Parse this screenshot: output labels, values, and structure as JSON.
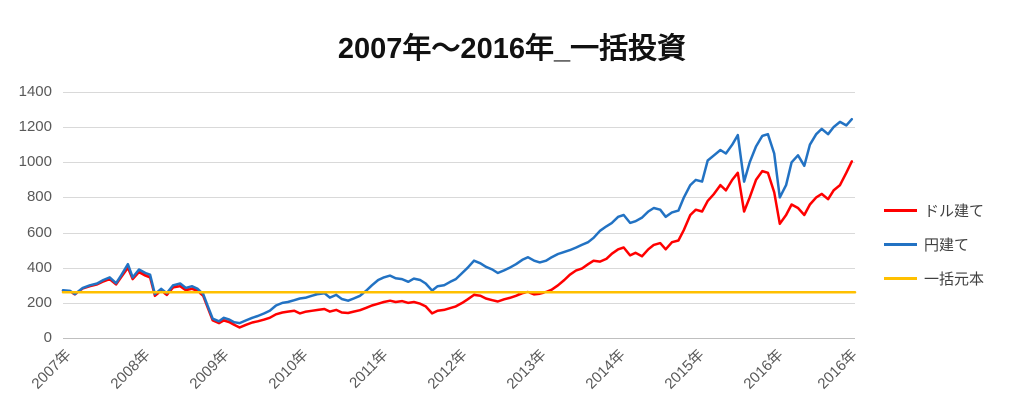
{
  "title": "2007年〜2016年_一括投資",
  "colors": {
    "usd_line": "#FF0000",
    "jpy_line": "#2272C3",
    "principal_line": "#FFC000",
    "grid": "#D9D9D9",
    "axis_text": "#595959",
    "legend_text": "#404040"
  },
  "legend": {
    "items": [
      {
        "key": "usd",
        "label": "ドル建て",
        "color": "#FF0000"
      },
      {
        "key": "jpy",
        "label": "円建て",
        "color": "#2272C3"
      },
      {
        "key": "principal",
        "label": "一括元本",
        "color": "#FFC000"
      }
    ]
  },
  "chart_data": {
    "type": "line",
    "title": "2007年〜2016年_一括投資",
    "xlabel": "",
    "ylabel": "",
    "ylim": [
      0,
      1400
    ],
    "y_tick_interval": 200,
    "y_tick_labels": [
      "0",
      "200",
      "400",
      "600",
      "800",
      "1000",
      "1200",
      "1400"
    ],
    "x_range_years": [
      2007,
      2017
    ],
    "x_tick_labels": [
      "2007年",
      "2008年",
      "2009年",
      "2010年",
      "2011年",
      "2012年",
      "2013年",
      "2014年",
      "2015年",
      "2016年",
      "2016年"
    ],
    "x_tick_positions_years": [
      2007,
      2008,
      2009,
      2010,
      2011,
      2012,
      2013,
      2014,
      2015,
      2016,
      2016.93
    ],
    "grid": "horizontal",
    "legend_position": "right",
    "x": [
      2007.0,
      2007.09,
      2007.15,
      2007.25,
      2007.34,
      2007.43,
      2007.51,
      2007.59,
      2007.67,
      2007.74,
      2007.82,
      2007.88,
      2007.96,
      2008.04,
      2008.1,
      2008.16,
      2008.24,
      2008.31,
      2008.39,
      2008.48,
      2008.55,
      2008.63,
      2008.7,
      2008.77,
      2008.83,
      2008.89,
      2008.97,
      2009.03,
      2009.1,
      2009.16,
      2009.23,
      2009.31,
      2009.39,
      2009.46,
      2009.54,
      2009.61,
      2009.69,
      2009.77,
      2009.84,
      2009.92,
      2009.99,
      2010.07,
      2010.14,
      2010.22,
      2010.3,
      2010.37,
      2010.45,
      2010.52,
      2010.6,
      2010.67,
      2010.75,
      2010.83,
      2010.9,
      2010.98,
      2011.05,
      2011.13,
      2011.2,
      2011.28,
      2011.36,
      2011.43,
      2011.51,
      2011.58,
      2011.66,
      2011.73,
      2011.81,
      2011.89,
      2011.96,
      2012.04,
      2012.11,
      2012.19,
      2012.27,
      2012.34,
      2012.42,
      2012.49,
      2012.57,
      2012.64,
      2012.72,
      2012.8,
      2012.87,
      2012.95,
      2013.02,
      2013.1,
      2013.17,
      2013.25,
      2013.33,
      2013.4,
      2013.48,
      2013.55,
      2013.63,
      2013.7,
      2013.78,
      2013.86,
      2013.93,
      2014.01,
      2014.08,
      2014.16,
      2014.23,
      2014.31,
      2014.39,
      2014.46,
      2014.54,
      2014.61,
      2014.69,
      2014.77,
      2014.84,
      2014.92,
      2014.99,
      2015.07,
      2015.14,
      2015.22,
      2015.3,
      2015.37,
      2015.45,
      2015.52,
      2015.6,
      2015.67,
      2015.75,
      2015.83,
      2015.9,
      2015.98,
      2016.05,
      2016.13,
      2016.2,
      2016.28,
      2016.36,
      2016.43,
      2016.51,
      2016.58,
      2016.66,
      2016.73,
      2016.81,
      2016.89,
      2016.96
    ],
    "series": [
      {
        "name": "ドル建て",
        "color": "#FF0000",
        "values": [
          270,
          265,
          248,
          282,
          295,
          305,
          322,
          335,
          305,
          350,
          400,
          335,
          375,
          355,
          345,
          240,
          270,
          245,
          288,
          295,
          272,
          280,
          268,
          240,
          170,
          100,
          85,
          100,
          90,
          75,
          60,
          75,
          88,
          95,
          105,
          115,
          135,
          145,
          150,
          155,
          140,
          150,
          155,
          160,
          165,
          150,
          160,
          145,
          142,
          150,
          158,
          172,
          185,
          195,
          205,
          212,
          205,
          210,
          200,
          205,
          195,
          180,
          140,
          155,
          160,
          170,
          180,
          200,
          220,
          245,
          240,
          225,
          215,
          208,
          220,
          228,
          240,
          255,
          262,
          248,
          252,
          262,
          275,
          300,
          330,
          360,
          385,
          395,
          420,
          440,
          435,
          450,
          480,
          505,
          515,
          470,
          485,
          465,
          505,
          530,
          540,
          505,
          545,
          555,
          615,
          700,
          730,
          720,
          780,
          820,
          870,
          840,
          900,
          940,
          720,
          800,
          900,
          950,
          940,
          830,
          650,
          700,
          760,
          740,
          700,
          760,
          800,
          820,
          790,
          840,
          870,
          940,
          1005
        ]
      },
      {
        "name": "円建て",
        "color": "#2272C3",
        "values": [
          272,
          268,
          250,
          285,
          300,
          310,
          330,
          345,
          312,
          360,
          420,
          345,
          390,
          370,
          360,
          250,
          280,
          255,
          300,
          310,
          285,
          295,
          280,
          250,
          180,
          110,
          95,
          115,
          105,
          90,
          85,
          100,
          115,
          125,
          140,
          155,
          185,
          200,
          205,
          215,
          225,
          230,
          240,
          250,
          255,
          230,
          245,
          222,
          212,
          225,
          240,
          270,
          300,
          330,
          345,
          355,
          340,
          335,
          320,
          338,
          330,
          310,
          270,
          295,
          300,
          320,
          335,
          370,
          400,
          440,
          425,
          405,
          390,
          370,
          385,
          400,
          420,
          445,
          460,
          440,
          430,
          440,
          460,
          478,
          490,
          500,
          515,
          530,
          545,
          570,
          610,
          635,
          655,
          690,
          700,
          655,
          665,
          685,
          720,
          740,
          730,
          690,
          715,
          725,
          800,
          870,
          900,
          890,
          1010,
          1040,
          1070,
          1050,
          1100,
          1155,
          890,
          1000,
          1090,
          1150,
          1160,
          1050,
          800,
          870,
          1000,
          1040,
          980,
          1100,
          1160,
          1190,
          1160,
          1200,
          1230,
          1210,
          1245
        ]
      },
      {
        "name": "一括元本",
        "color": "#FFC000",
        "constant": 260
      }
    ]
  }
}
